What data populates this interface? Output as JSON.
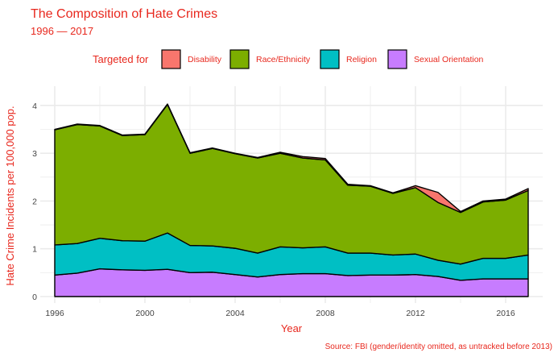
{
  "chart_data": {
    "type": "area",
    "stacked": true,
    "title": "The Composition of Hate Crimes",
    "subtitle": "1996 — 2017",
    "xlabel": "Year",
    "ylabel": "Hate Crime Incidents per 100,000 pop.",
    "caption": "Source: FBI (gender/identity omitted, as untracked before 2013)",
    "legend_title": "Targeted for",
    "legend_position": "top",
    "grid": true,
    "xlim": [
      1996,
      2017
    ],
    "ylim": [
      0,
      4.2
    ],
    "x_ticks": [
      1996,
      2000,
      2004,
      2008,
      2012,
      2016
    ],
    "y_ticks": [
      0,
      1,
      2,
      3,
      4
    ],
    "x": [
      1996,
      1997,
      1998,
      1999,
      2000,
      2001,
      2002,
      2003,
      2004,
      2005,
      2006,
      2007,
      2008,
      2009,
      2010,
      2011,
      2012,
      2013,
      2014,
      2015,
      2016,
      2017
    ],
    "series": [
      {
        "name": "Sexual Orientation",
        "color": "#C77CFF",
        "values": [
          0.45,
          0.49,
          0.58,
          0.56,
          0.55,
          0.57,
          0.5,
          0.51,
          0.46,
          0.41,
          0.46,
          0.48,
          0.48,
          0.44,
          0.45,
          0.45,
          0.46,
          0.42,
          0.34,
          0.37,
          0.37,
          0.37
        ]
      },
      {
        "name": "Religion",
        "color": "#00BFC4",
        "values": [
          0.63,
          0.62,
          0.64,
          0.61,
          0.61,
          0.76,
          0.57,
          0.55,
          0.55,
          0.5,
          0.58,
          0.54,
          0.56,
          0.47,
          0.46,
          0.42,
          0.43,
          0.34,
          0.34,
          0.43,
          0.43,
          0.5
        ]
      },
      {
        "name": "Race/Ethnicity",
        "color": "#7CAE00",
        "values": [
          2.41,
          2.49,
          2.35,
          2.2,
          2.23,
          2.69,
          1.93,
          2.04,
          1.98,
          1.99,
          1.96,
          1.88,
          1.82,
          1.42,
          1.4,
          1.29,
          1.39,
          1.21,
          1.08,
          1.18,
          1.22,
          1.35
        ]
      },
      {
        "name": "Disability",
        "color": "#F8766D",
        "values": [
          0.01,
          0.01,
          0.01,
          0.01,
          0.01,
          0.01,
          0.01,
          0.01,
          0.01,
          0.01,
          0.02,
          0.03,
          0.03,
          0.02,
          0.01,
          0.01,
          0.04,
          0.21,
          0.02,
          0.02,
          0.02,
          0.04
        ]
      }
    ],
    "legend_order": [
      "Disability",
      "Race/Ethnicity",
      "Religion",
      "Sexual Orientation"
    ]
  },
  "colors": {
    "title": "#e8281e",
    "text": "#444444",
    "grid": "#ebebeb",
    "outline": "#000000"
  }
}
